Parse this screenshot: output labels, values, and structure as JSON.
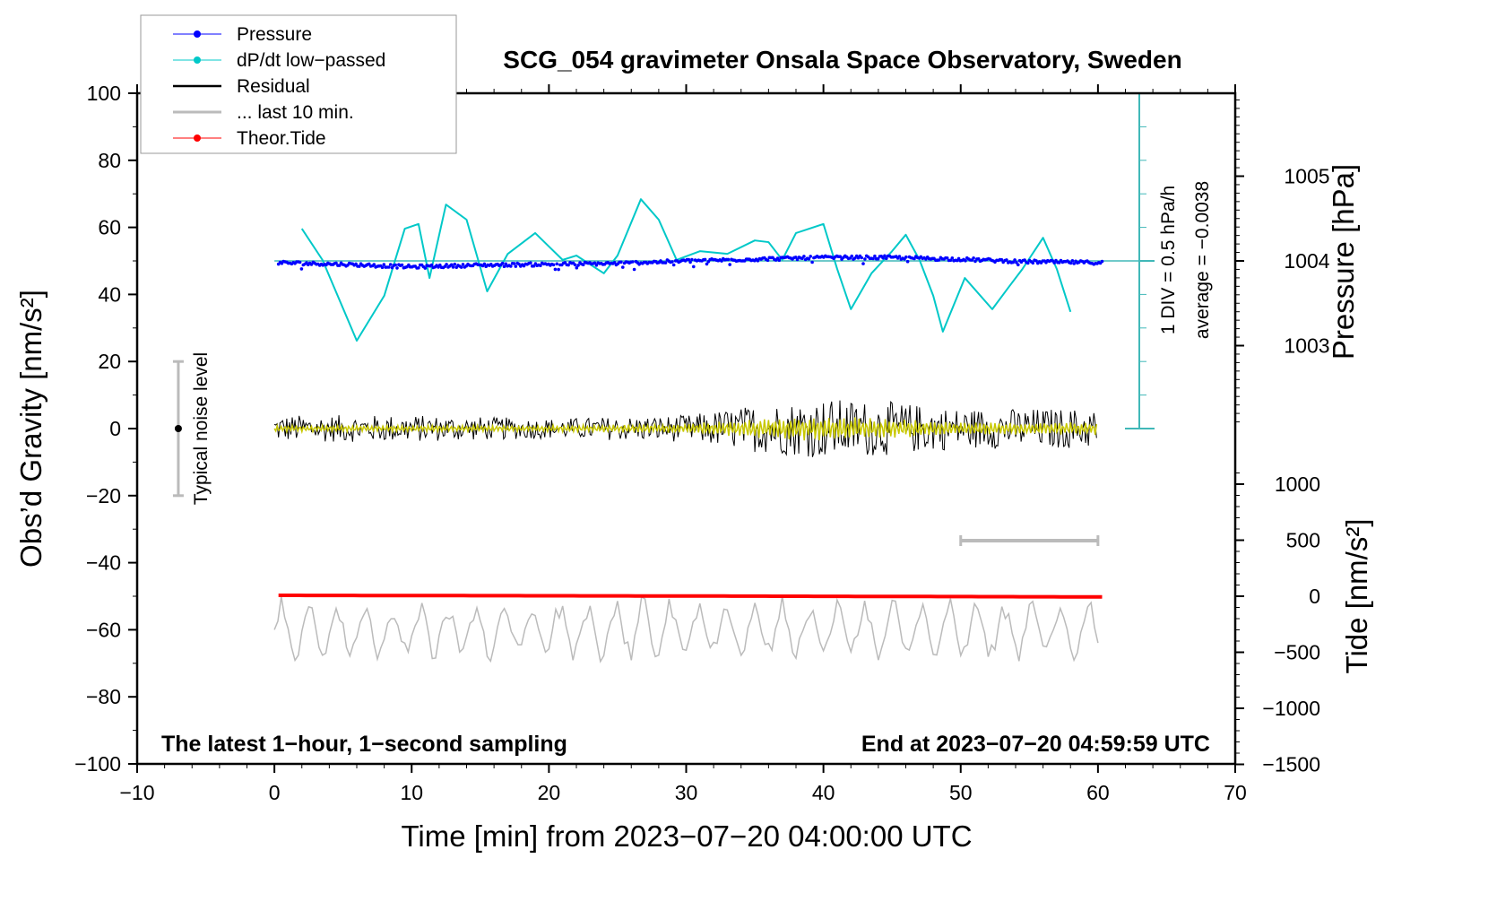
{
  "chart_data": {
    "type": "line",
    "title": "SCG_054 gravimeter Onsala Space Observatory, Sweden",
    "xlabel": "Time [min] from 2023−07−20 04:00:00 UTC",
    "ylabel": "Obs’d Gravity [nm/s²]",
    "ylabel_right_top": "Pressure [hPa]",
    "ylabel_right_bottom": "Tide [nm/s²]",
    "xlim": [
      -10,
      70
    ],
    "ylim": [
      -100,
      100
    ],
    "pressure_lim": [
      1001,
      1006
    ],
    "tide_lim": [
      -1500,
      1500
    ],
    "x_ticks": [
      "−10",
      "0",
      "10",
      "20",
      "30",
      "40",
      "50",
      "60",
      "70"
    ],
    "y_ticks": [
      "100",
      "80",
      "60",
      "40",
      "20",
      "0",
      "−20",
      "−40",
      "−60",
      "−80",
      "−100"
    ],
    "pressure_ticks": [
      "1005",
      "1004",
      "1003"
    ],
    "tide_ticks": [
      "1000",
      "500",
      "0",
      "−500",
      "−1000",
      "−1500"
    ],
    "legend": {
      "placement": "top-left",
      "entries": [
        "Pressure",
        "dP/dt low−passed",
        "Residual",
        "... last 10 min.",
        "Theor.Tide"
      ]
    },
    "annotations": {
      "bottom_left": "The latest 1−hour, 1−second sampling",
      "bottom_right": "End at 2023−07−20 04:59:59 UTC",
      "noise_label": "Typical noise level",
      "div_label": "1 DIV = 0.5 hPa/h",
      "average_label": "average = −0.0038"
    },
    "noise_level_bar": {
      "x": -7,
      "range": [
        -20,
        20
      ]
    },
    "last10_bar": {
      "range_min": [
        50,
        60
      ]
    },
    "series": [
      {
        "name": "Pressure",
        "unit": "hPa",
        "color": "#0000ff",
        "x": [
          0,
          5,
          10,
          15,
          20,
          25,
          30,
          35,
          40,
          45,
          50,
          55,
          60
        ],
        "y": [
          1003.98,
          1003.96,
          1003.93,
          1003.95,
          1003.96,
          1003.97,
          1004.0,
          1004.02,
          1004.04,
          1004.04,
          1004.02,
          1003.99,
          1003.98
        ]
      },
      {
        "name": "dP/dt low-passed",
        "unit": "gravity-axis units (1 DIV = 0.5 hPa/h)",
        "color": "#00c8c8",
        "x": [
          2,
          3.5,
          6,
          8,
          9.5,
          10.5,
          11.3,
          12.5,
          14,
          15.5,
          17,
          19,
          20,
          21,
          22,
          24,
          25,
          26.7,
          28,
          29.3,
          31,
          33,
          35,
          36,
          37,
          38,
          40,
          41,
          42,
          43.5,
          45,
          46,
          47,
          48,
          48.7,
          50.3,
          52.3,
          53.5,
          54.5,
          56,
          57,
          58
        ],
        "y": [
          59.6,
          50.3,
          26.2,
          39.6,
          59.6,
          61.0,
          44.9,
          66.8,
          62.3,
          40.9,
          52.1,
          58.3,
          54.3,
          50.3,
          51.6,
          46.3,
          51.6,
          68.4,
          62.3,
          50.3,
          52.9,
          52.1,
          56.1,
          55.6,
          50.3,
          58.3,
          61.0,
          47.6,
          35.6,
          46.3,
          52.9,
          57.8,
          50.3,
          39.6,
          28.9,
          44.9,
          35.6,
          42.2,
          47.6,
          56.9,
          47.6,
          34.8
        ]
      },
      {
        "name": "Residual",
        "unit": "nm/s²",
        "color": "#000000",
        "x": [
          0,
          10,
          20,
          30,
          35,
          40,
          45,
          50,
          60
        ],
        "amplitude": [
          4,
          4,
          3,
          4,
          7,
          9,
          8,
          6,
          6
        ]
      },
      {
        "name": "Residual smoothed",
        "color": "#c8c800",
        "x": [
          0,
          10,
          20,
          30,
          35,
          40,
          45,
          50,
          60
        ],
        "amplitude": [
          1,
          1,
          1,
          1.5,
          3,
          4,
          3,
          2,
          2
        ]
      },
      {
        "name": "... last 10 min.",
        "color": "#bbbbbb",
        "offset": -60,
        "amplitude": 8
      },
      {
        "name": "Theor.Tide",
        "unit": "nm/s²",
        "color": "#ff0000",
        "x": [
          0,
          30,
          60
        ],
        "y": [
          8,
          2,
          -6
        ]
      }
    ]
  }
}
